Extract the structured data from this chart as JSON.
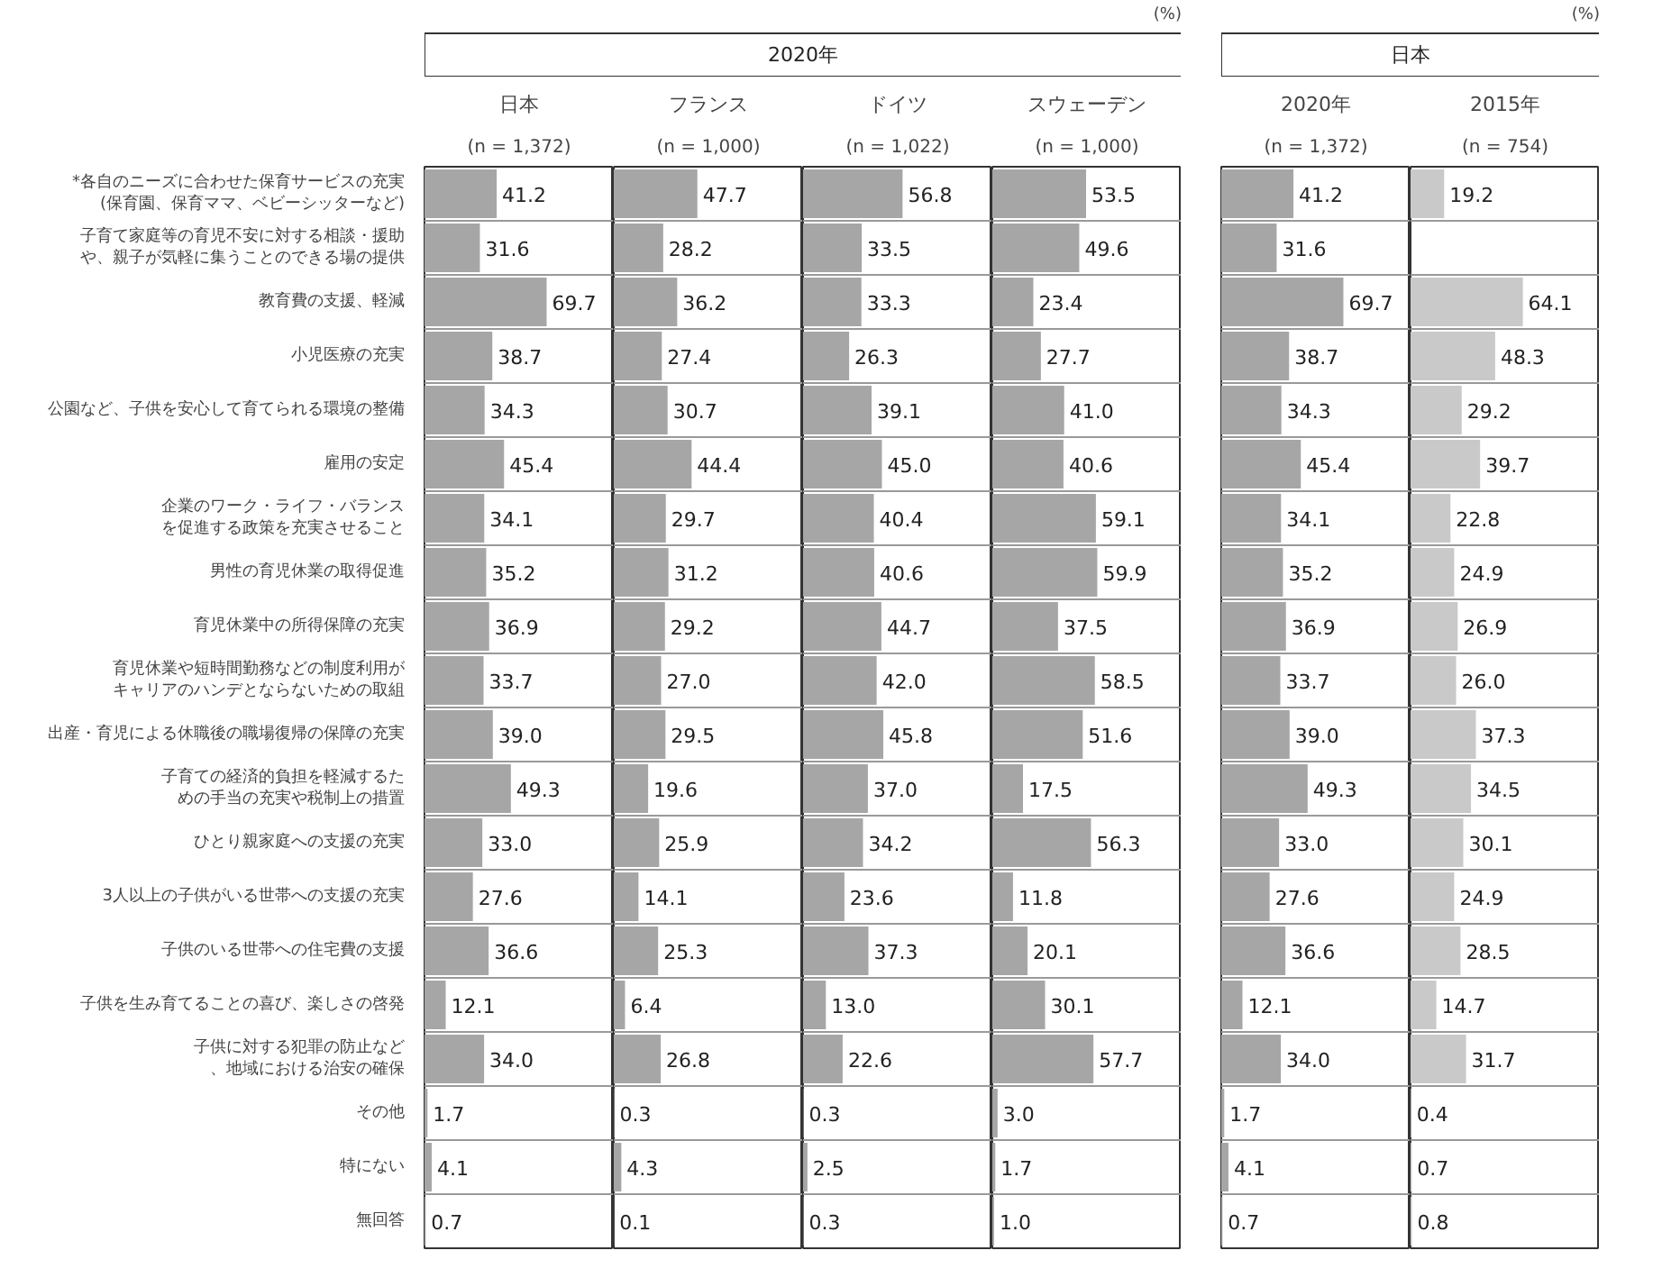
{
  "chart_data": [
    {
      "type": "bar",
      "orientation": "horizontal",
      "title": "日本",
      "subtitle": "(n = 1,372)",
      "annotations": [
        "2020年",
        "(%)"
      ],
      "categories": [
        "*各自のニーズに合わせた保育サービスの充実(保育園、保育ママ、ベビーシッターなど)",
        "子育て家庭等の育児不安に対する相談・援助や、親子が気軽に集うことのできる場の提供",
        "教育費の支援、軽減",
        "小児医療の充実",
        "公園など、子供を安心して育てられる環境の整備",
        "雇用の安定",
        "企業のワーク・ライフ・バランスを促進する政策を充実させること",
        "男性の育児休業の取得促進",
        "育児休業中の所得保障の充実",
        "育児休業や短時間勤務などの制度利用がキャリアのハンデとならないための取組",
        "出産・育児による休職後の職場復帰の保障の充実",
        "子育ての経済的負担を軽減するための手当の充実や税制上の措置",
        "ひとり親家庭への支援の充実",
        "3人以上の子供がいる世帯への支援の充実",
        "子供のいる世帯への住宅費の支援",
        "子供を生み育てることの喜び、楽しさの啓発",
        "子供に対する犯罪の防止など、地域における治安の確保",
        "その他",
        "特にない",
        "無回答"
      ],
      "values": [
        41.2,
        31.6,
        69.7,
        38.7,
        34.3,
        45.4,
        34.1,
        35.2,
        36.9,
        33.7,
        39.0,
        49.3,
        33.0,
        27.6,
        36.6,
        12.1,
        34.0,
        1.7,
        4.1,
        0.7
      ],
      "value_labels": [
        "41.2",
        "31.6",
        "69.7",
        "38.7",
        "34.3",
        "45.4",
        "34.1",
        "35.2",
        "36.9",
        "33.7",
        "39.0",
        "49.3",
        "33.0",
        "27.6",
        "36.6",
        "12.1",
        "34.0",
        "1.7",
        "4.1",
        "0.7"
      ],
      "color": "#a6a6a6",
      "grid": "y",
      "tick_labels": "y"
    },
    {
      "type": "bar",
      "orientation": "horizontal",
      "title": "フランス",
      "subtitle": "(n = 1,000)",
      "categories": [
        "*各自のニーズに合わせた保育サービスの充実(保育園、保育ママ、ベビーシッターなど)",
        "子育て家庭等の育児不安に対する相談・援助や、親子が気軽に集うことのできる場の提供",
        "教育費の支援、軽減",
        "小児医療の充実",
        "公園など、子供を安心して育てられる環境の整備",
        "雇用の安定",
        "企業のワーク・ライフ・バランスを促進する政策を充実させること",
        "男性の育児休業の取得促進",
        "育児休業中の所得保障の充実",
        "育児休業や短時間勤務などの制度利用がキャリアのハンデとならないための取組",
        "出産・育児による休職後の職場復帰の保障の充実",
        "子育ての経済的負担を軽減するための手当の充実や税制上の措置",
        "ひとり親家庭への支援の充実",
        "3人以上の子供がいる世帯への支援の充実",
        "子供のいる世帯への住宅費の支援",
        "子供を生み育てることの喜び、楽しさの啓発",
        "子供に対する犯罪の防止など、地域における治安の確保",
        "その他",
        "特にない",
        "無回答"
      ],
      "values": [
        47.7,
        28.2,
        36.2,
        27.4,
        30.7,
        44.4,
        29.7,
        31.2,
        29.2,
        27.0,
        29.5,
        19.6,
        25.9,
        14.1,
        25.3,
        6.4,
        26.8,
        0.3,
        4.3,
        0.1
      ],
      "value_labels": [
        "47.7",
        "28.2",
        "36.2",
        "27.4",
        "30.7",
        "44.4",
        "29.7",
        "31.2",
        "29.2",
        "27.0",
        "29.5",
        "19.6",
        "25.9",
        "14.1",
        "25.3",
        "6.4",
        "26.8",
        "0.3",
        "4.3",
        "0.1"
      ],
      "color": "#a6a6a6",
      "grid": "y",
      "tick_labels": false
    },
    {
      "type": "bar",
      "orientation": "horizontal",
      "title": "ドイツ",
      "subtitle": "(n = 1,022)",
      "categories": [
        "*各自のニーズに合わせた保育サービスの充実(保育園、保育ママ、ベビーシッターなど)",
        "子育て家庭等の育児不安に対する相談・援助や、親子が気軽に集うことのできる場の提供",
        "教育費の支援、軽減",
        "小児医療の充実",
        "公園など、子供を安心して育てられる環境の整備",
        "雇用の安定",
        "企業のワーク・ライフ・バランスを促進する政策を充実させること",
        "男性の育児休業の取得促進",
        "育児休業中の所得保障の充実",
        "育児休業や短時間勤務などの制度利用がキャリアのハンデとならないための取組",
        "出産・育児による休職後の職場復帰の保障の充実",
        "子育ての経済的負担を軽減するための手当の充実や税制上の措置",
        "ひとり親家庭への支援の充実",
        "3人以上の子供がいる世帯への支援の充実",
        "子供のいる世帯への住宅費の支援",
        "子供を生み育てることの喜び、楽しさの啓発",
        "子供に対する犯罪の防止など、地域における治安の確保",
        "その他",
        "特にない",
        "無回答"
      ],
      "values": [
        56.8,
        33.5,
        33.3,
        26.3,
        39.1,
        45.0,
        40.4,
        40.6,
        44.7,
        42.0,
        45.8,
        37.0,
        34.2,
        23.6,
        37.3,
        13.0,
        22.6,
        0.3,
        2.5,
        0.3
      ],
      "value_labels": [
        "56.8",
        "33.5",
        "33.3",
        "26.3",
        "39.1",
        "45.0",
        "40.4",
        "40.6",
        "44.7",
        "42.0",
        "45.8",
        "37.0",
        "34.2",
        "23.6",
        "37.3",
        "13.0",
        "22.6",
        "0.3",
        "2.5",
        "0.3"
      ],
      "color": "#a6a6a6",
      "grid": "y",
      "tick_labels": false
    },
    {
      "type": "bar",
      "orientation": "horizontal",
      "title": "スウェーデン",
      "subtitle": "(n = 1,000)",
      "categories": [
        "*各自のニーズに合わせた保育サービスの充実(保育園、保育ママ、ベビーシッターなど)",
        "子育て家庭等の育児不安に対する相談・援助や、親子が気軽に集うことのできる場の提供",
        "教育費の支援、軽減",
        "小児医療の充実",
        "公園など、子供を安心して育てられる環境の整備",
        "雇用の安定",
        "企業のワーク・ライフ・バランスを促進する政策を充実させること",
        "男性の育児休業の取得促進",
        "育児休業中の所得保障の充実",
        "育児休業や短時間勤務などの制度利用がキャリアのハンデとならないための取組",
        "出産・育児による休職後の職場復帰の保障の充実",
        "子育ての経済的負担を軽減するための手当の充実や税制上の措置",
        "ひとり親家庭への支援の充実",
        "3人以上の子供がいる世帯への支援の充実",
        "子供のいる世帯への住宅費の支援",
        "子供を生み育てることの喜び、楽しさの啓発",
        "子供に対する犯罪の防止など、地域における治安の確保",
        "その他",
        "特にない",
        "無回答"
      ],
      "values": [
        53.5,
        49.6,
        23.4,
        27.7,
        41.0,
        40.6,
        59.1,
        59.9,
        37.5,
        58.5,
        51.6,
        17.5,
        56.3,
        11.8,
        20.1,
        30.1,
        57.7,
        3.0,
        1.7,
        1.0
      ],
      "value_labels": [
        "53.5",
        "49.6",
        "23.4",
        "27.7",
        "41.0",
        "40.6",
        "59.1",
        "59.9",
        "37.5",
        "58.5",
        "51.6",
        "17.5",
        "56.3",
        "11.8",
        "20.1",
        "30.1",
        "57.7",
        "3.0",
        "1.7",
        "1.0"
      ],
      "color": "#a6a6a6",
      "grid": "y",
      "tick_labels": false
    },
    {
      "type": "bar",
      "orientation": "horizontal",
      "title": "2020年",
      "subtitle": "(n = 1,372)",
      "annotations": [
        "日本",
        "(%)"
      ],
      "categories": [
        "*各自のニーズに合わせた保育サービスの充実(保育園、保育ママ、ベビーシッターなど)",
        "子育て家庭等の育児不安に対する相談・援助や、親子が気軽に集うことのできる場の提供",
        "教育費の支援、軽減",
        "小児医療の充実",
        "公園など、子供を安心して育てられる環境の整備",
        "雇用の安定",
        "企業のワーク・ライフ・バランスを促進する政策を充実させること",
        "男性の育児休業の取得促進",
        "育児休業中の所得保障の充実",
        "育児休業や短時間勤務などの制度利用がキャリアのハンデとならないための取組",
        "出産・育児による休職後の職場復帰の保障の充実",
        "子育ての経済的負担を軽減するための手当の充実や税制上の措置",
        "ひとり親家庭への支援の充実",
        "3人以上の子供がいる世帯への支援の充実",
        "子供のいる世帯への住宅費の支援",
        "子供を生み育てることの喜び、楽しさの啓発",
        "子供に対する犯罪の防止など、地域における治安の確保",
        "その他",
        "特にない",
        "無回答"
      ],
      "values": [
        41.2,
        31.6,
        69.7,
        38.7,
        34.3,
        45.4,
        34.1,
        35.2,
        36.9,
        33.7,
        39.0,
        49.3,
        33.0,
        27.6,
        36.6,
        12.1,
        34.0,
        1.7,
        4.1,
        0.7
      ],
      "value_labels": [
        "41.2",
        "31.6",
        "69.7",
        "38.7",
        "34.3",
        "45.4",
        "34.1",
        "35.2",
        "36.9",
        "33.7",
        "39.0",
        "49.3",
        "33.0",
        "27.6",
        "36.6",
        "12.1",
        "34.0",
        "1.7",
        "4.1",
        "0.7"
      ],
      "color": "#a6a6a6",
      "grid": "y",
      "tick_labels": false
    },
    {
      "type": "bar",
      "orientation": "horizontal",
      "title": "2015年",
      "subtitle": "(n = 754)",
      "categories": [
        "*各自のニーズに合わせた保育サービスの充実(保育園、保育ママ、ベビーシッターなど)",
        "子育て家庭等の育児不安に対する相談・援助や、親子が気軽に集うことのできる場の提供",
        "教育費の支援、軽減",
        "小児医療の充実",
        "公園など、子供を安心して育てられる環境の整備",
        "雇用の安定",
        "企業のワーク・ライフ・バランスを促進する政策を充実させること",
        "男性の育児休業の取得促進",
        "育児休業中の所得保障の充実",
        "育児休業や短時間勤務などの制度利用がキャリアのハンデとならないための取組",
        "出産・育児による休職後の職場復帰の保障の充実",
        "子育ての経済的負担を軽減するための手当の充実や税制上の措置",
        "ひとり親家庭への支援の充実",
        "3人以上の子供がいる世帯への支援の充実",
        "子供のいる世帯への住宅費の支援",
        "子供を生み育てることの喜び、楽しさの啓発",
        "子供に対する犯罪の防止など、地域における治安の確保",
        "その他",
        "特にない",
        "無回答"
      ],
      "values": [
        19.2,
        null,
        64.1,
        48.3,
        29.2,
        39.7,
        22.8,
        24.9,
        26.9,
        26.0,
        37.3,
        34.5,
        30.1,
        24.9,
        28.5,
        14.7,
        31.7,
        0.4,
        0.7,
        0.8
      ],
      "value_labels": [
        "19.2",
        null,
        "64.1",
        "48.3",
        "29.2",
        "39.7",
        "22.8",
        "24.9",
        "26.9",
        "26.0",
        "37.3",
        "34.5",
        "30.1",
        "24.9",
        "28.5",
        "14.7",
        "31.7",
        "0.4",
        "0.7",
        "0.8"
      ],
      "color": "#c9c9c9",
      "grid": "y",
      "tick_labels": false
    }
  ]
}
